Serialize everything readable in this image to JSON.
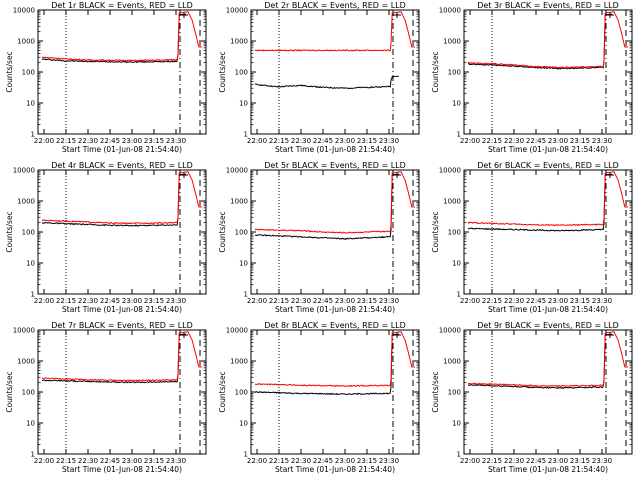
{
  "figure": {
    "xlabel": "Start Time (01-Jun-08 21:54:40)",
    "ylabel": "Counts/sec",
    "xticks": [
      "22:00",
      "22:15",
      "22:30",
      "22:45",
      "23:00",
      "23:15",
      "23:30"
    ],
    "yticks": [
      "1",
      "10",
      "100",
      "1000",
      "10000"
    ],
    "colors": {
      "events": "#000000",
      "lld": "#ff0000"
    }
  },
  "chart_data": [
    {
      "type": "line",
      "title": "Det 1r BLACK = Events, RED = LLD",
      "yscale": "log",
      "ylim": [
        1,
        10000
      ],
      "xlim_minutes": [
        -1,
        41
      ],
      "series": [
        {
          "name": "Events",
          "color": "#000000",
          "values": [
            260,
            230,
            220,
            215,
            210,
            215,
            220,
            7000
          ]
        },
        {
          "name": "LLD",
          "color": "#ff0000",
          "values": [
            300,
            265,
            245,
            240,
            235,
            240,
            250,
            8000
          ]
        }
      ]
    },
    {
      "type": "line",
      "title": "Det 2r BLACK = Events, RED = LLD",
      "yscale": "log",
      "ylim": [
        1,
        10000
      ],
      "xlim_minutes": [
        -1,
        41
      ],
      "series": [
        {
          "name": "Events",
          "color": "#000000",
          "values": [
            40,
            33,
            37,
            32,
            30,
            32,
            34,
            70
          ]
        },
        {
          "name": "LLD",
          "color": "#ff0000",
          "values": [
            500,
            500,
            500,
            500,
            500,
            500,
            500,
            8000
          ]
        }
      ]
    },
    {
      "type": "line",
      "title": "Det 3r BLACK = Events, RED = LLD",
      "yscale": "log",
      "ylim": [
        1,
        10000
      ],
      "xlim_minutes": [
        -1,
        41
      ],
      "series": [
        {
          "name": "Events",
          "color": "#000000",
          "values": [
            180,
            170,
            155,
            140,
            130,
            135,
            140,
            7000
          ]
        },
        {
          "name": "LLD",
          "color": "#ff0000",
          "values": [
            200,
            185,
            170,
            150,
            140,
            145,
            150,
            8000
          ]
        }
      ]
    },
    {
      "type": "line",
      "title": "Det 4r BLACK = Events, RED = LLD",
      "yscale": "log",
      "ylim": [
        1,
        10000
      ],
      "xlim_minutes": [
        -1,
        41
      ],
      "series": [
        {
          "name": "Events",
          "color": "#000000",
          "values": [
            200,
            185,
            175,
            165,
            160,
            165,
            170,
            7000
          ]
        },
        {
          "name": "LLD",
          "color": "#ff0000",
          "values": [
            240,
            225,
            210,
            195,
            190,
            195,
            200,
            8000
          ]
        }
      ]
    },
    {
      "type": "line",
      "title": "Det 5r BLACK = Events, RED = LLD",
      "yscale": "log",
      "ylim": [
        1,
        10000
      ],
      "xlim_minutes": [
        -1,
        41
      ],
      "series": [
        {
          "name": "Events",
          "color": "#000000",
          "values": [
            80,
            75,
            70,
            65,
            60,
            65,
            70,
            7000
          ]
        },
        {
          "name": "LLD",
          "color": "#ff0000",
          "values": [
            120,
            115,
            110,
            100,
            95,
            100,
            105,
            8000
          ]
        }
      ]
    },
    {
      "type": "line",
      "title": "Det 6r BLACK = Events, RED = LLD",
      "yscale": "log",
      "ylim": [
        1,
        10000
      ],
      "xlim_minutes": [
        -1,
        41
      ],
      "series": [
        {
          "name": "Events",
          "color": "#000000",
          "values": [
            130,
            125,
            120,
            115,
            110,
            115,
            120,
            7000
          ]
        },
        {
          "name": "LLD",
          "color": "#ff0000",
          "values": [
            200,
            190,
            180,
            170,
            165,
            170,
            175,
            8000
          ]
        }
      ]
    },
    {
      "type": "line",
      "title": "Det 7r BLACK = Events, RED = LLD",
      "yscale": "log",
      "ylim": [
        1,
        10000
      ],
      "xlim_minutes": [
        -1,
        41
      ],
      "series": [
        {
          "name": "Events",
          "color": "#000000",
          "values": [
            240,
            230,
            220,
            210,
            205,
            210,
            215,
            7000
          ]
        },
        {
          "name": "LLD",
          "color": "#ff0000",
          "values": [
            280,
            265,
            250,
            240,
            235,
            240,
            245,
            8000
          ]
        }
      ]
    },
    {
      "type": "line",
      "title": "Det 8r BLACK = Events, RED = LLD",
      "yscale": "log",
      "ylim": [
        1,
        10000
      ],
      "xlim_minutes": [
        -1,
        41
      ],
      "series": [
        {
          "name": "Events",
          "color": "#000000",
          "values": [
            100,
            95,
            90,
            88,
            85,
            88,
            90,
            7000
          ]
        },
        {
          "name": "LLD",
          "color": "#ff0000",
          "values": [
            180,
            175,
            165,
            160,
            155,
            160,
            165,
            8000
          ]
        }
      ]
    },
    {
      "type": "line",
      "title": "Det 9r BLACK = Events, RED = LLD",
      "yscale": "log",
      "ylim": [
        1,
        10000
      ],
      "xlim_minutes": [
        -1,
        41
      ],
      "series": [
        {
          "name": "Events",
          "color": "#000000",
          "values": [
            170,
            160,
            150,
            140,
            135,
            140,
            145,
            7000
          ]
        },
        {
          "name": "LLD",
          "color": "#ff0000",
          "values": [
            190,
            180,
            170,
            160,
            155,
            160,
            165,
            8000
          ]
        }
      ]
    }
  ]
}
